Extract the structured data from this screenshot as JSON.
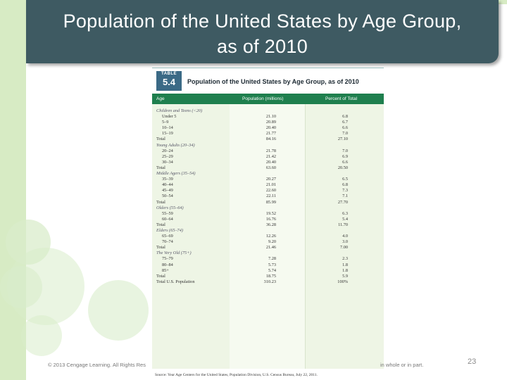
{
  "slide": {
    "title_line1": "Population of the United States by Age Group,",
    "title_line2": "as of 2010",
    "footer_left": "© 2013 Cengage Learning. All Rights Res",
    "footer_right": "in whole or in part.",
    "page_number": "23"
  },
  "table": {
    "badge_label": "TABLE",
    "badge_number": "5.4",
    "title": "Population of the United States by Age Group, as of 2010",
    "columns": [
      "Age",
      "Population (millions)",
      "Percent of Total"
    ],
    "rows": [
      {
        "kind": "group",
        "age": "Children and Teens (<20)",
        "pop": "",
        "pct": ""
      },
      {
        "kind": "item",
        "age": "Under 5",
        "pop": "21.10",
        "pct": "6.8"
      },
      {
        "kind": "item",
        "age": "5–9",
        "pop": "20.89",
        "pct": "6.7"
      },
      {
        "kind": "item",
        "age": "10–14",
        "pop": "20.40",
        "pct": "6.6"
      },
      {
        "kind": "item",
        "age": "15–19",
        "pop": "21.77",
        "pct": "7.0"
      },
      {
        "kind": "total",
        "age": "Total",
        "pop": "84.16",
        "pct": "27.10"
      },
      {
        "kind": "group",
        "age": "Young Adults (20–34)",
        "pop": "",
        "pct": ""
      },
      {
        "kind": "item",
        "age": "20–24",
        "pop": "21.78",
        "pct": "7.0"
      },
      {
        "kind": "item",
        "age": "25–29",
        "pop": "21.42",
        "pct": "6.9"
      },
      {
        "kind": "item",
        "age": "30–34",
        "pop": "20.40",
        "pct": "6.6"
      },
      {
        "kind": "total",
        "age": "Total",
        "pop": "63.60",
        "pct": "20.50"
      },
      {
        "kind": "group",
        "age": "Middle Agers (35–54)",
        "pop": "",
        "pct": ""
      },
      {
        "kind": "item",
        "age": "35–39",
        "pop": "20.27",
        "pct": "6.5"
      },
      {
        "kind": "item",
        "age": "40–44",
        "pop": "21.01",
        "pct": "6.8"
      },
      {
        "kind": "item",
        "age": "45–49",
        "pop": "22.60",
        "pct": "7.3"
      },
      {
        "kind": "item",
        "age": "50–54",
        "pop": "22.11",
        "pct": "7.1"
      },
      {
        "kind": "total",
        "age": "Total",
        "pop": "85.99",
        "pct": "27.70"
      },
      {
        "kind": "group",
        "age": "Olders (55–64)",
        "pop": "",
        "pct": ""
      },
      {
        "kind": "item",
        "age": "55–59",
        "pop": "19.52",
        "pct": "6.3"
      },
      {
        "kind": "item",
        "age": "60–64",
        "pop": "16.76",
        "pct": "5.4"
      },
      {
        "kind": "total",
        "age": "Total",
        "pop": "36.28",
        "pct": "11.70"
      },
      {
        "kind": "group",
        "age": "Elders (65–74)",
        "pop": "",
        "pct": ""
      },
      {
        "kind": "item",
        "age": "65–69",
        "pop": "12.26",
        "pct": "4.0"
      },
      {
        "kind": "item",
        "age": "70–74",
        "pop": "9.20",
        "pct": "3.0"
      },
      {
        "kind": "total",
        "age": "Total",
        "pop": "21.46",
        "pct": "7.00"
      },
      {
        "kind": "group",
        "age": "The Very Old (75+)",
        "pop": "",
        "pct": ""
      },
      {
        "kind": "item",
        "age": "75–79",
        "pop": "7.28",
        "pct": "2.3"
      },
      {
        "kind": "item",
        "age": "80–84",
        "pop": "5.73",
        "pct": "1.8"
      },
      {
        "kind": "item",
        "age": "85+",
        "pop": "5.74",
        "pct": "1.8"
      },
      {
        "kind": "total",
        "age": "Total",
        "pop": "18.75",
        "pct": "5.9"
      },
      {
        "kind": "total",
        "age": "Total U.S. Population",
        "pop": "310.23",
        "pct": "100%"
      }
    ],
    "source": "Source: Year Age Centers for the United States, Population Division, U.S. Census Bureau, July 22, 2011."
  },
  "colors": {
    "title_bar": "#3e5a62",
    "accent_green": "#1f7f4e",
    "badge_blue": "#3b6a86",
    "decor_green": "#d7ebc4"
  }
}
